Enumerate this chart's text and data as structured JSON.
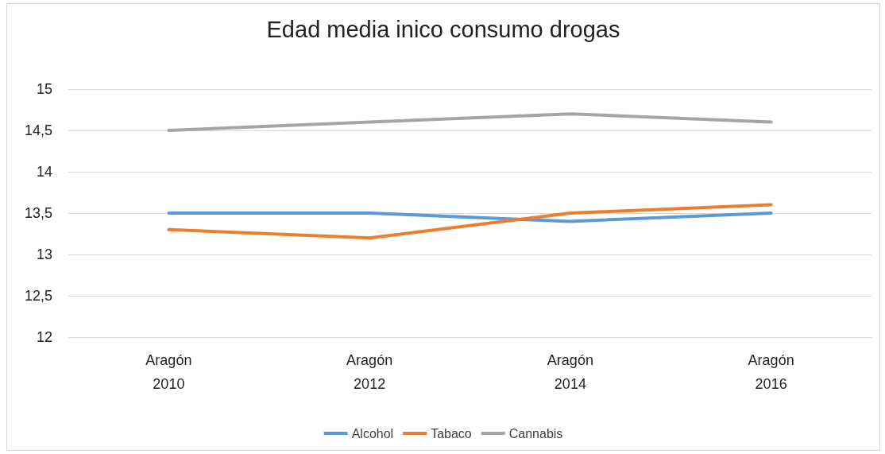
{
  "chart_data": {
    "type": "line",
    "title": "Edad media inico consumo drogas",
    "categories": [
      "Aragón\n2010",
      "Aragón\n2012",
      "Aragón\n2014",
      "Aragón\n2016"
    ],
    "series": [
      {
        "name": "Alcohol",
        "color": "#5b9bd5",
        "values": [
          13.5,
          13.5,
          13.4,
          13.5
        ]
      },
      {
        "name": "Tabaco",
        "color": "#ed7d31",
        "values": [
          13.3,
          13.2,
          13.5,
          13.6
        ]
      },
      {
        "name": "Cannabis",
        "color": "#a5a5a5",
        "values": [
          14.5,
          14.6,
          14.7,
          14.6
        ]
      }
    ],
    "ylim": [
      12,
      15
    ],
    "yticks": [
      12,
      {
        "value": 12.5,
        "label": "12,5"
      },
      13,
      {
        "value": 13.5,
        "label": "13,5"
      },
      14,
      {
        "value": 14.5,
        "label": "14,5"
      },
      15
    ],
    "grid": "y",
    "legend": "bottom",
    "marker": "none",
    "line_style": "solid"
  }
}
